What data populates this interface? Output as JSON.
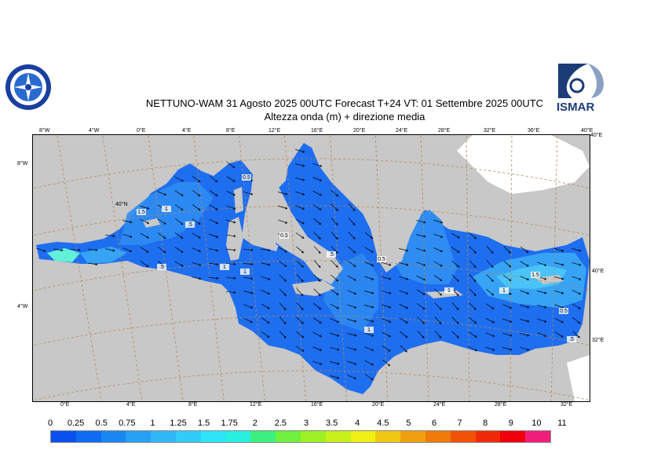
{
  "title": {
    "line1": "NETTUNO-WAM  31   Agosto  2025 00UTC Forecast T+24 VT: 01 Settembre 2025 00UTC",
    "line2": "Altezza onda (m) + direzione media"
  },
  "logos": {
    "left": "left-emblem-logo",
    "right_text": "ISMAR"
  },
  "map": {
    "top_ticks": [
      "8°W",
      "4°W",
      "0°E",
      "4°E",
      "8°E",
      "12°E",
      "16°E",
      "20°E",
      "24°E",
      "28°E",
      "32°E",
      "36°E",
      "40°E"
    ],
    "bottom_ticks": [
      "0°E",
      "4°E",
      "8°E",
      "12°E",
      "16°E",
      "20°E",
      "24°E",
      "28°E",
      "32°E"
    ],
    "left_ticks": [
      "8°W",
      "4°W"
    ],
    "right_ticks": [
      "40°E",
      "40°E",
      "32°E"
    ],
    "inner_labels": [
      "40°N"
    ],
    "contour_labels": [
      "1.5",
      ".5",
      "1",
      ".5",
      "1",
      "0.5",
      "1",
      ".5",
      "0.5",
      "1",
      "1",
      "0.5",
      ".5",
      "1.5",
      "0.5",
      "1"
    ],
    "colors": {
      "land": "#c8c8c8",
      "background_sea": "#ffffff",
      "sea_base": "#1e6ef0",
      "sea_light": "#2f8cf2",
      "sea_mid": "#3aa8f5",
      "sea_high": "#4cc8f8",
      "sea_peak": "#62f0d8",
      "grid": "#b08a5a"
    }
  },
  "legend": {
    "labels": [
      "0",
      "0.25",
      "0.5",
      "0.75",
      "1",
      "1.25",
      "1.5",
      "1.75",
      "2",
      "2.5",
      "3",
      "3.5",
      "4",
      "4.5",
      "5",
      "6",
      "7",
      "8",
      "9",
      "10",
      "11"
    ],
    "colors": [
      "#0a50f0",
      "#0f6cf2",
      "#1a86f2",
      "#28a0f4",
      "#30b8f6",
      "#32ccf8",
      "#2ee4f8",
      "#28f0e0",
      "#3cf080",
      "#6ef03c",
      "#9cf024",
      "#c8f01a",
      "#f0f014",
      "#f0c814",
      "#f0a00f",
      "#f07a0a",
      "#f05208",
      "#f02a08",
      "#f0000a",
      "#f01e78",
      "#f01eb4"
    ]
  }
}
